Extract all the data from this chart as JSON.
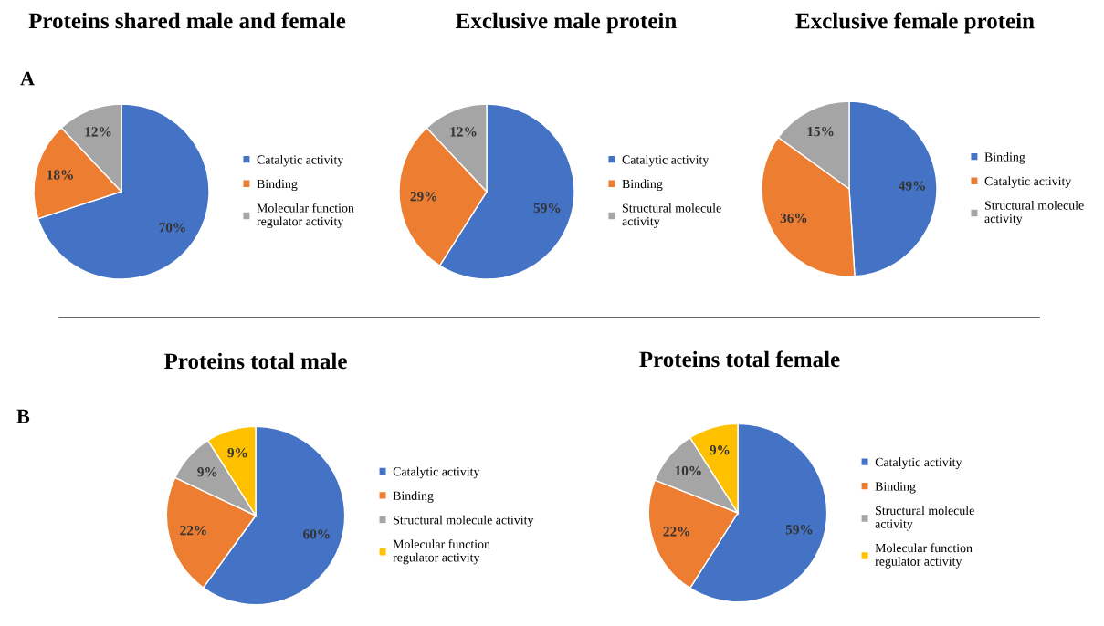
{
  "chart_data": [
    {
      "type": "pie",
      "title": "Proteins shared male and female",
      "annotations": [
        "A"
      ],
      "categories": [
        "Catalytic activity",
        "Binding",
        "Molecular function\nregulator activity"
      ],
      "values": [
        70,
        18,
        12
      ],
      "value_labels": [
        "70%",
        "18%",
        "12%"
      ],
      "colors": [
        "#4472c4",
        "#ed7d31",
        "#a5a5a5"
      ],
      "legend": "right"
    },
    {
      "type": "pie",
      "title": "Exclusive male protein",
      "categories": [
        "Catalytic activity",
        "Binding",
        "Structural molecule\nactivity"
      ],
      "values": [
        59,
        29,
        12
      ],
      "value_labels": [
        "59%",
        "29%",
        "12%"
      ],
      "colors": [
        "#4472c4",
        "#ed7d31",
        "#a5a5a5"
      ],
      "legend": "right"
    },
    {
      "type": "pie",
      "title": "Exclusive female protein",
      "categories": [
        "Binding",
        "Catalytic activity",
        "Structural molecule\nactivity"
      ],
      "values": [
        49,
        36,
        15
      ],
      "value_labels": [
        "49%",
        "36%",
        "15%"
      ],
      "colors": [
        "#4472c4",
        "#ed7d31",
        "#a5a5a5"
      ],
      "legend": "right"
    },
    {
      "type": "pie",
      "title": "Proteins total male",
      "annotations": [
        "B"
      ],
      "categories": [
        "Catalytic activity",
        "Binding",
        "Structural molecule activity",
        "Molecular function\nregulator activity"
      ],
      "values": [
        60,
        22,
        9,
        9
      ],
      "value_labels": [
        "60%",
        "22%",
        "9%",
        "9%"
      ],
      "colors": [
        "#4472c4",
        "#ed7d31",
        "#a5a5a5",
        "#ffc000"
      ],
      "legend": "right"
    },
    {
      "type": "pie",
      "title": "Proteins total female",
      "categories": [
        "Catalytic activity",
        "Binding",
        "Structural molecule\nactivity",
        "Molecular function\nregulator activity"
      ],
      "values": [
        59,
        22,
        10,
        9
      ],
      "value_labels": [
        "59%",
        "22%",
        "10%",
        "9%"
      ],
      "colors": [
        "#4472c4",
        "#ed7d31",
        "#a5a5a5",
        "#ffc000"
      ],
      "legend": "right"
    }
  ]
}
